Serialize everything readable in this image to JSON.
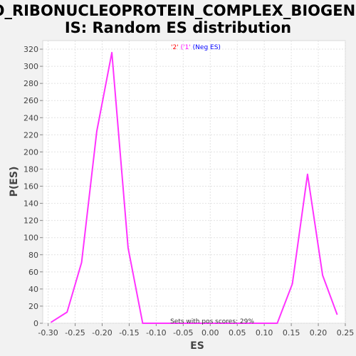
{
  "chart_data": {
    "type": "line",
    "title_lines": [
      "GO_RIBONUCLEOPROTEIN_COMPLEX_BIOGENES",
      "IS: Random ES distribution"
    ],
    "xlabel": "ES",
    "ylabel": "P(ES)",
    "xlim": [
      -0.31,
      0.25
    ],
    "ylim": [
      0,
      330
    ],
    "x_ticks": [
      "-0.30",
      "-0.25",
      "-0.20",
      "-0.15",
      "-0.10",
      "-0.05",
      "0.00",
      "0.05",
      "0.10",
      "0.15",
      "0.20",
      "0.25"
    ],
    "x_tick_values": [
      -0.3,
      -0.25,
      -0.2,
      -0.15,
      -0.1,
      -0.05,
      0.0,
      0.05,
      0.1,
      0.15,
      0.2,
      0.25
    ],
    "y_ticks": [
      0,
      20,
      40,
      60,
      80,
      100,
      120,
      140,
      160,
      180,
      200,
      220,
      240,
      260,
      280,
      300,
      320
    ],
    "grid": true,
    "legend": {
      "placement": "top-center",
      "items": [
        {
          "text": "'2'",
          "color": "#ff0000"
        },
        {
          "text": " ('1'",
          "color": "#ff00ff"
        },
        {
          "text": " (Neg ES)",
          "color": "#0000ff"
        }
      ]
    },
    "annotation": "Sets with pos scores: 29%",
    "series": [
      {
        "color": "#ff33ff",
        "points": [
          [
            -0.295,
            1
          ],
          [
            -0.265,
            13
          ],
          [
            -0.238,
            71
          ],
          [
            -0.21,
            224
          ],
          [
            -0.182,
            316
          ],
          [
            -0.152,
            88
          ],
          [
            -0.125,
            0
          ],
          [
            -0.097,
            0
          ],
          [
            -0.07,
            0
          ],
          [
            -0.04,
            0
          ],
          [
            -0.012,
            0
          ],
          [
            0.016,
            0
          ],
          [
            0.044,
            0
          ],
          [
            0.072,
            0
          ],
          [
            0.1,
            0
          ],
          [
            0.124,
            0
          ],
          [
            0.152,
            46
          ],
          [
            0.18,
            174
          ],
          [
            0.208,
            56
          ],
          [
            0.235,
            10
          ]
        ]
      }
    ]
  }
}
